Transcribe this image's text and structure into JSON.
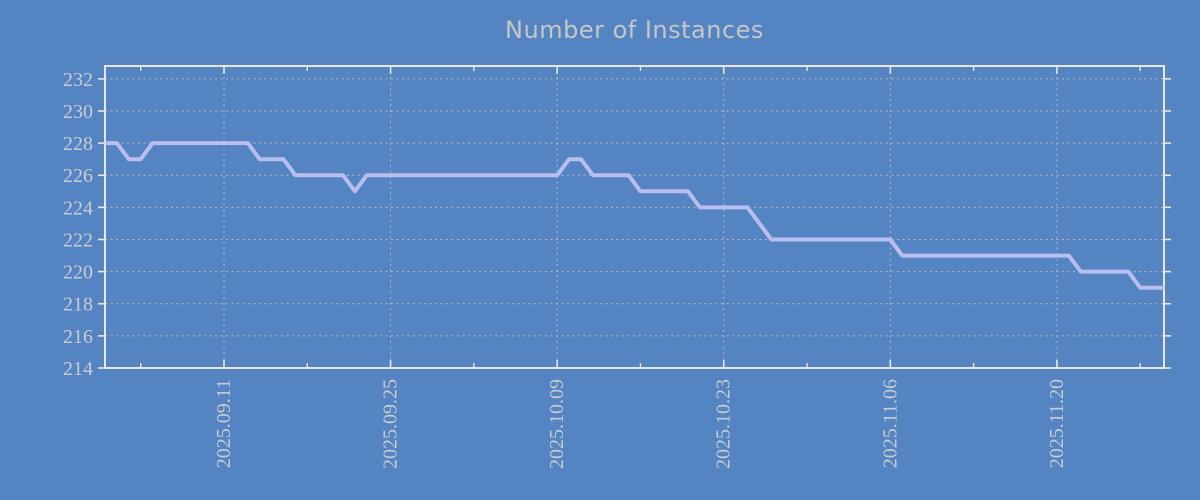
{
  "colors": {
    "background": "#5484c1",
    "line": "#b9bdf0",
    "grid": "#c9c5b7",
    "border": "#e7e7e0",
    "tick_text": "#c8ccd4",
    "title_text": "#c5c6c8"
  },
  "chart_data": {
    "type": "line",
    "title": "Number of Instances",
    "xlabel": "",
    "ylabel": "",
    "legend_position": "none",
    "grid": "dotted",
    "ylim": [
      214,
      232.8
    ],
    "y_ticks": [
      214,
      216,
      218,
      220,
      222,
      224,
      226,
      228,
      230,
      232
    ],
    "x_major_ticks": {
      "labels": [
        "2025.09.11",
        "2025.09.25",
        "2025.10.09",
        "2025.10.23",
        "2025.11.06",
        "2025.11.20"
      ],
      "day_index": [
        10,
        24,
        38,
        52,
        66,
        80
      ]
    },
    "x_minor_day_index": [
      3,
      17,
      31,
      45,
      59,
      73,
      87
    ],
    "series": [
      {
        "name": "instances",
        "x": [
          "2025.09.01",
          "2025.09.02",
          "2025.09.03",
          "2025.09.04",
          "2025.09.05",
          "2025.09.06",
          "2025.09.07",
          "2025.09.08",
          "2025.09.09",
          "2025.09.10",
          "2025.09.11",
          "2025.09.12",
          "2025.09.13",
          "2025.09.14",
          "2025.09.15",
          "2025.09.16",
          "2025.09.17",
          "2025.09.18",
          "2025.09.19",
          "2025.09.20",
          "2025.09.21",
          "2025.09.22",
          "2025.09.23",
          "2025.09.24",
          "2025.09.25",
          "2025.09.26",
          "2025.09.27",
          "2025.09.28",
          "2025.09.29",
          "2025.09.30",
          "2025.10.01",
          "2025.10.02",
          "2025.10.03",
          "2025.10.04",
          "2025.10.05",
          "2025.10.06",
          "2025.10.07",
          "2025.10.08",
          "2025.10.09",
          "2025.10.10",
          "2025.10.11",
          "2025.10.12",
          "2025.10.13",
          "2025.10.14",
          "2025.10.15",
          "2025.10.16",
          "2025.10.17",
          "2025.10.18",
          "2025.10.19",
          "2025.10.20",
          "2025.10.21",
          "2025.10.22",
          "2025.10.23",
          "2025.10.24",
          "2025.10.25",
          "2025.10.26",
          "2025.10.27",
          "2025.10.28",
          "2025.10.29",
          "2025.10.30",
          "2025.10.31",
          "2025.11.01",
          "2025.11.02",
          "2025.11.03",
          "2025.11.04",
          "2025.11.05",
          "2025.11.06",
          "2025.11.07",
          "2025.11.08",
          "2025.11.09",
          "2025.11.10",
          "2025.11.11",
          "2025.11.12",
          "2025.11.13",
          "2025.11.14",
          "2025.11.15",
          "2025.11.16",
          "2025.11.17",
          "2025.11.18",
          "2025.11.19",
          "2025.11.20",
          "2025.11.21",
          "2025.11.22",
          "2025.11.23",
          "2025.11.24",
          "2025.11.25",
          "2025.11.26",
          "2025.11.27",
          "2025.11.28",
          "2025.11.29"
        ],
        "values": [
          228,
          228,
          227,
          227,
          228,
          228,
          228,
          228,
          228,
          228,
          228,
          228,
          228,
          227,
          227,
          227,
          226,
          226,
          226,
          226,
          226,
          225,
          226,
          226,
          226,
          226,
          226,
          226,
          226,
          226,
          226,
          226,
          226,
          226,
          226,
          226,
          226,
          226,
          226,
          227,
          227,
          226,
          226,
          226,
          226,
          225,
          225,
          225,
          225,
          225,
          224,
          224,
          224,
          224,
          224,
          223,
          222,
          222,
          222,
          222,
          222,
          222,
          222,
          222,
          222,
          222,
          222,
          221,
          221,
          221,
          221,
          221,
          221,
          221,
          221,
          221,
          221,
          221,
          221,
          221,
          221,
          221,
          220,
          220,
          220,
          220,
          220,
          219,
          219,
          219
        ]
      }
    ]
  }
}
